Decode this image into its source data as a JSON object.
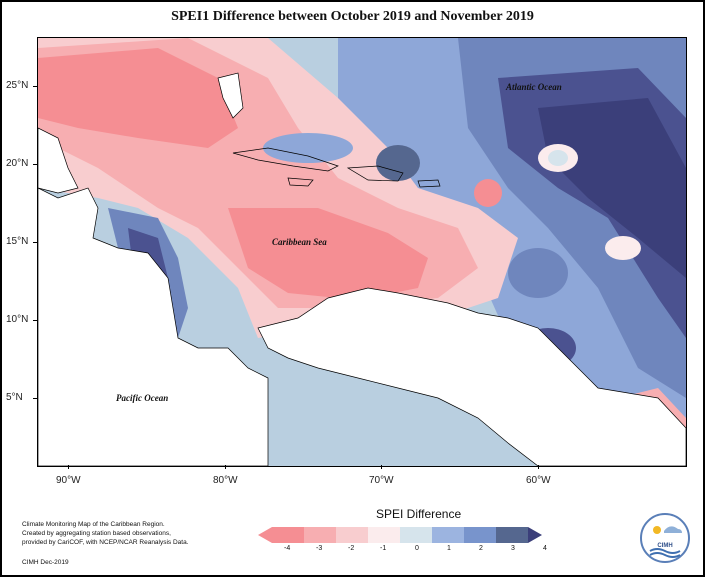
{
  "title": "SPEI1 Difference between October 2019 and November 2019",
  "labels": {
    "atlantic": "Atlantic Ocean",
    "caribbean": "Caribbean Sea",
    "pacific": "Pacific Ocean"
  },
  "latitudes": [
    "25°N",
    "20°N",
    "15°N",
    "10°N",
    "5°N"
  ],
  "longitudes": [
    "90°W",
    "80°W",
    "70°W",
    "60°W"
  ],
  "footer": {
    "line1": "Climate Monitoring Map of the Caribbean Region.",
    "line2": "Created by aggregating station based observations,",
    "line3": "provided by CariCOF, with NCEP/NCAR Reanalysis Data.",
    "credit": "CIMH Dec-2019"
  },
  "legend": {
    "title": "SPEI Difference",
    "ticks": [
      "-4",
      "-3",
      "-2",
      "-1",
      "0",
      "1",
      "2",
      "3",
      "4"
    ],
    "colors": [
      "#f58e93",
      "#f7aeb1",
      "#f8cdcf",
      "#fbeced",
      "#d6e4ec",
      "#9cb4e0",
      "#7894cc",
      "#55678f",
      "#3b3f7a"
    ]
  },
  "logo": {
    "text": "CIMH"
  }
}
